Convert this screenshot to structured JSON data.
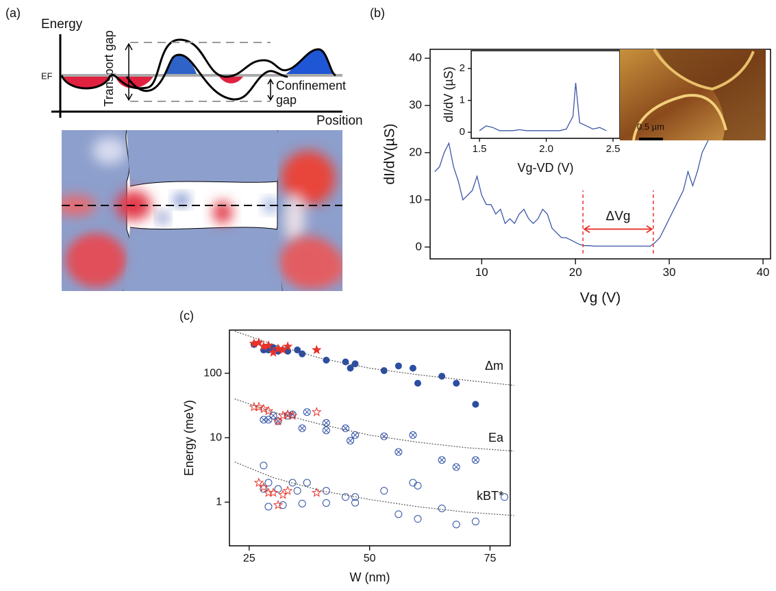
{
  "panel_a": {
    "label": "(a)",
    "y_axis": "Energy",
    "fermi_level": "EF",
    "transport_gap": "Transport gap",
    "confinement_gap": [
      "Confinement",
      "gap"
    ],
    "x_axis": "Position"
  },
  "afm_image": {
    "scale_bar": "0.5 µm"
  },
  "chart_data": [
    {
      "type": "line",
      "panel_label": "(b)",
      "xlabel": "Vg (V)",
      "ylabel": "dI/dV(µS)",
      "color": "#3a55a8",
      "x": [
        5,
        5.5,
        6,
        6.5,
        7,
        7.5,
        8,
        8.5,
        9,
        9.5,
        10,
        10.5,
        11,
        11.5,
        12,
        12.5,
        13,
        13.5,
        14,
        14.5,
        15,
        15.5,
        16,
        16.5,
        17,
        17.5,
        18,
        18.5,
        19,
        19.5,
        20,
        20.5,
        21,
        21.5,
        22,
        22.5,
        23,
        23.5,
        24,
        24.5,
        25,
        25.5,
        26,
        26.5,
        27,
        27.5,
        28,
        28.5,
        29,
        29.5,
        30,
        30.5,
        31,
        31.5,
        32,
        32.5,
        33,
        33.5,
        34,
        34.5,
        35,
        35.5,
        36,
        36.5,
        37,
        37.5,
        38,
        38.5,
        39,
        39.5,
        40
      ],
      "values": [
        16,
        17,
        20,
        22,
        17,
        14,
        10,
        11,
        12,
        15,
        11,
        9,
        9,
        7,
        8,
        5,
        6,
        5,
        7,
        8,
        6,
        5,
        6,
        8,
        7,
        4,
        3,
        2,
        2,
        1.5,
        1,
        0.5,
        0.3,
        0.3,
        0.2,
        0.2,
        0.2,
        0.2,
        0.2,
        0.2,
        0.2,
        0.2,
        0.2,
        0.2,
        0.2,
        0.2,
        0.2,
        1,
        2,
        4,
        6,
        8,
        10,
        12,
        16,
        13,
        16,
        20,
        22,
        24,
        25,
        28,
        30,
        28,
        31,
        33,
        32,
        34,
        35,
        38,
        37
      ],
      "xlim": [
        4.5,
        40.8
      ],
      "ylim": [
        -2.5,
        41.9
      ],
      "xticks": [
        10,
        20,
        30,
        40
      ],
      "yticks": [
        0,
        10,
        20,
        30,
        40
      ],
      "vlines": [
        20.8,
        28.3
      ],
      "vline_color": "#e8332a",
      "annotation": "ΔVg"
    },
    {
      "type": "line",
      "xlabel": "Vg-VD (V)",
      "ylabel": "dI/dV (µS)",
      "color": "#3a55a8",
      "x": [
        1.5,
        1.55,
        1.6,
        1.65,
        1.7,
        1.75,
        1.8,
        1.85,
        1.9,
        1.95,
        2.0,
        2.05,
        2.1,
        2.15,
        2.2,
        2.22,
        2.25,
        2.3,
        2.35,
        2.4,
        2.45
      ],
      "values": [
        0.05,
        0.2,
        0.15,
        0.05,
        0.05,
        0.05,
        0.08,
        0.05,
        0.05,
        0.05,
        0.05,
        0.05,
        0.05,
        0.1,
        0.5,
        1.55,
        0.3,
        0.2,
        0.1,
        0.15,
        0.05
      ],
      "xlim": [
        1.438,
        2.551
      ],
      "ylim": [
        -0.19,
        2.56
      ],
      "xticks": [
        1.5,
        {
          "value": 2,
          "label": "2.0"
        },
        2.5
      ],
      "yticks": [
        0,
        1,
        2
      ]
    },
    {
      "type": "scatter",
      "panel_label": "(c)",
      "xlabel": "W (nm)",
      "ylabel": "Energy (meV)",
      "ylog": true,
      "xlim": [
        20.9,
        79.2
      ],
      "ylim": [
        0.21,
        468
      ],
      "xticks": [
        25,
        50,
        75
      ],
      "yticks": [
        1,
        10,
        100
      ],
      "series": [
        {
          "name": "Δm",
          "color": "#2b4ea2",
          "marker": "filled-circle",
          "x": [
            26,
            28,
            29,
            30,
            31,
            33,
            35,
            36,
            41,
            45,
            46,
            47,
            53,
            56,
            59,
            60,
            65,
            68,
            72
          ],
          "values": [
            280,
            230,
            230,
            250,
            220,
            220,
            230,
            200,
            160,
            150,
            120,
            140,
            110,
            130,
            120,
            70,
            90,
            70,
            33
          ]
        },
        {
          "color": "#e8332a",
          "marker": "star-filled",
          "x": [
            26,
            27,
            28,
            29,
            30,
            31,
            32,
            33,
            39
          ],
          "values": [
            290,
            300,
            260,
            270,
            210,
            240,
            230,
            260,
            230
          ]
        },
        {
          "name": "Ea",
          "color": "#2b4ea2",
          "marker": "crossed-circle",
          "x": [
            28,
            29,
            30,
            31,
            33,
            34,
            36,
            37,
            41,
            41,
            45,
            46,
            47,
            53,
            56,
            59,
            65,
            68,
            72
          ],
          "values": [
            19,
            19,
            22,
            18,
            22,
            23,
            14,
            25,
            17,
            13,
            14,
            9,
            11,
            10.5,
            6,
            11,
            4.5,
            3.5,
            4.5
          ]
        },
        {
          "color": "#e8332a",
          "marker": "star-open",
          "x": [
            26,
            27,
            28,
            29,
            31,
            32,
            33,
            34,
            39
          ],
          "values": [
            30,
            30,
            28,
            26,
            18,
            22,
            23,
            22,
            25
          ]
        },
        {
          "name": "kBT*",
          "color": "#2b4ea2",
          "marker": "open-circle",
          "x": [
            28,
            28,
            29,
            29,
            31,
            32,
            34,
            35,
            36,
            37,
            41,
            41,
            45,
            47,
            47,
            53,
            56,
            59,
            60,
            60,
            65,
            68,
            72,
            78
          ],
          "values": [
            3.7,
            1.6,
            2,
            0.85,
            1.6,
            0.9,
            2,
            1.5,
            0.95,
            2,
            1.5,
            0.97,
            1.2,
            1.2,
            0.98,
            1.5,
            0.65,
            2,
            0.55,
            1.8,
            0.8,
            0.45,
            0.5,
            1.2
          ]
        },
        {
          "color": "#e8332a",
          "marker": "star-open",
          "x": [
            27,
            28,
            29,
            30,
            31,
            32,
            33,
            39
          ],
          "values": [
            2,
            1.7,
            1.4,
            1.4,
            0.9,
            1.3,
            1.5,
            1.4
          ]
        },
        {
          "type": "line",
          "style": "dotted",
          "color": "#555555",
          "x": [
            22,
            30,
            40,
            50,
            60,
            70,
            80
          ],
          "values": [
            450,
            280,
            170,
            120,
            95,
            78,
            65
          ]
        },
        {
          "type": "line",
          "style": "dotted",
          "color": "#555555",
          "x": [
            22,
            30,
            40,
            50,
            60,
            70,
            80
          ],
          "values": [
            40,
            25,
            16,
            11,
            8.5,
            7,
            6.2
          ]
        },
        {
          "type": "line",
          "style": "dotted",
          "color": "#555555",
          "x": [
            22,
            30,
            40,
            50,
            60,
            70,
            80
          ],
          "values": [
            4.2,
            2.4,
            1.5,
            1.1,
            0.85,
            0.7,
            0.62
          ]
        }
      ]
    }
  ]
}
